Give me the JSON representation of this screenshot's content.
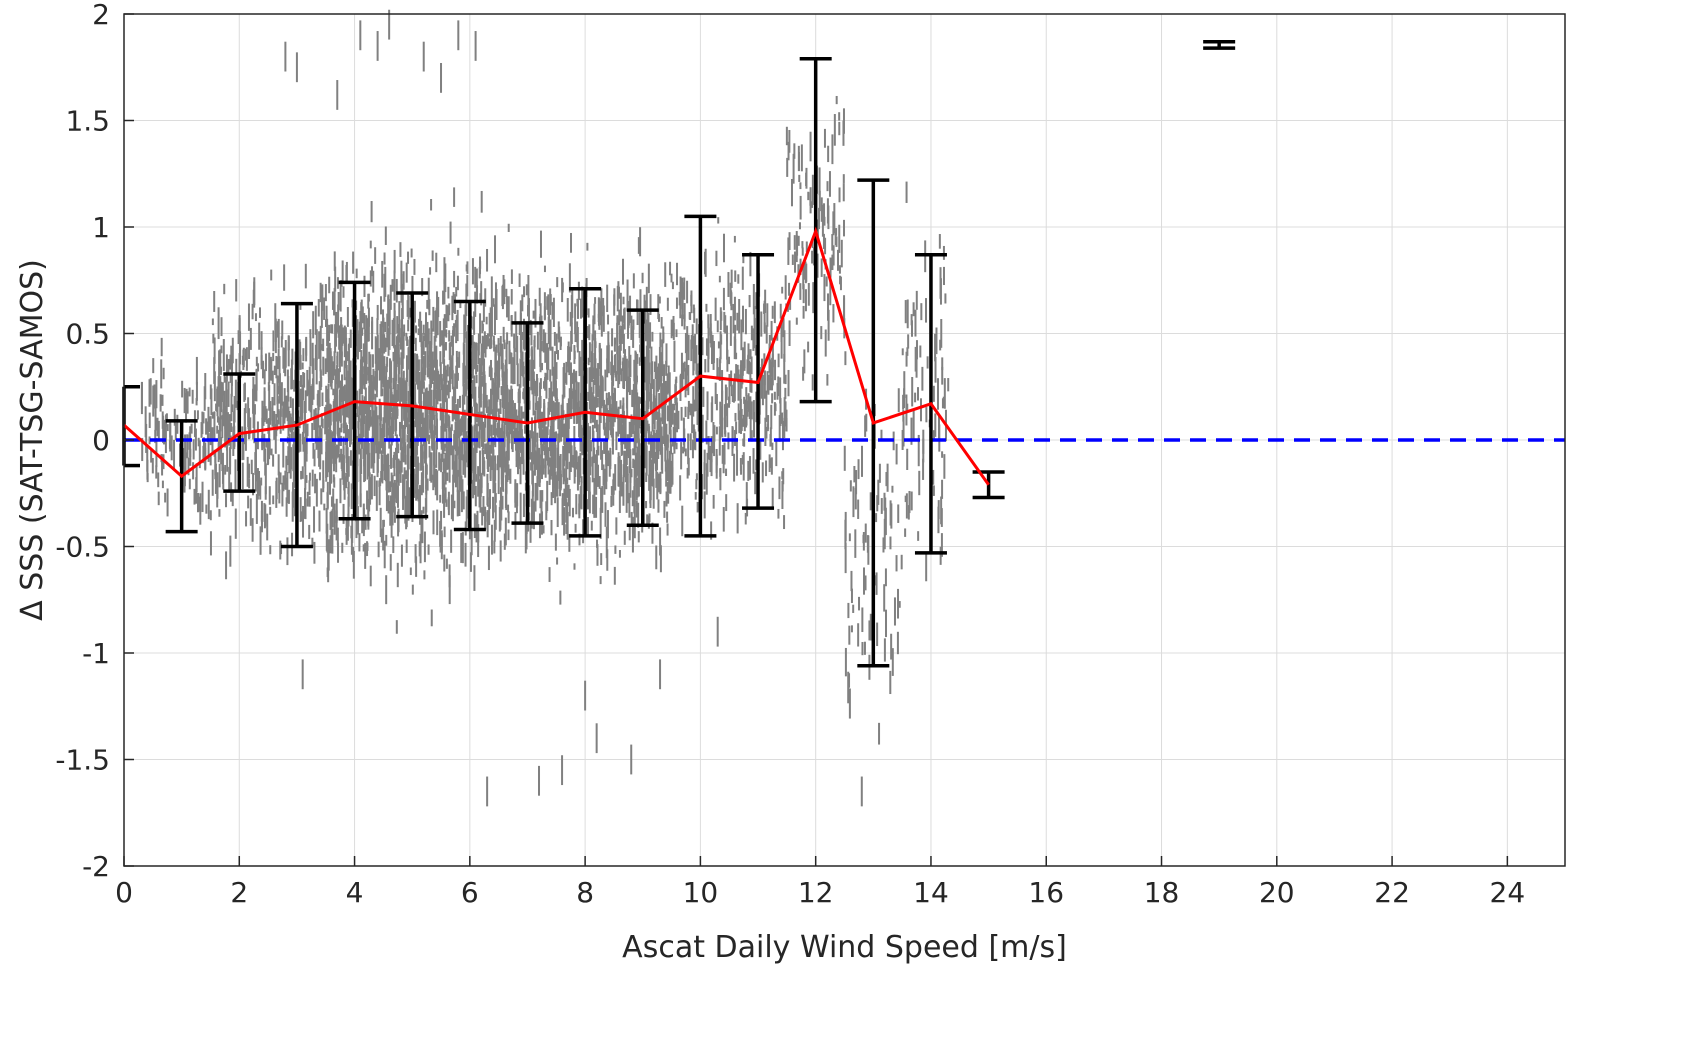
{
  "chart_data": {
    "type": "scatter",
    "title": "",
    "xlabel": "Ascat Daily Wind Speed [m/s]",
    "ylabel": "Δ SSS (SAT-TSG-SAMOS)",
    "xlim": [
      0,
      25
    ],
    "ylim": [
      -2,
      2
    ],
    "x_ticks": [
      0,
      2,
      4,
      6,
      8,
      10,
      12,
      14,
      16,
      18,
      20,
      22,
      24
    ],
    "y_ticks": [
      2,
      1.5,
      1,
      0.5,
      0,
      -0.5,
      -1,
      -1.5,
      -2
    ],
    "x_tick_labels": [
      "0",
      "2",
      "4",
      "6",
      "8",
      "10",
      "12",
      "14",
      "16",
      "18",
      "20",
      "22",
      "24"
    ],
    "y_tick_labels": [
      "2",
      "1.5",
      "1",
      "0.5",
      "0",
      "-0.5",
      "-1",
      "-1.5",
      "-2"
    ],
    "grid": true,
    "legend": "none",
    "colors": {
      "scatter": "#808080",
      "mean_line": "#ff0000",
      "zero_line": "#0000ff",
      "error_bars": "#000000",
      "grid": "#dcdcdc"
    },
    "series": [
      {
        "type": "line",
        "color": "#ff0000",
        "x": [
          0,
          1,
          2,
          3,
          4,
          5,
          6,
          7,
          8,
          9,
          10,
          11,
          12,
          13,
          14,
          15
        ],
        "y": [
          0.07,
          -0.17,
          0.03,
          0.07,
          0.18,
          0.16,
          0.12,
          0.08,
          0.13,
          0.1,
          0.3,
          0.27,
          0.98,
          0.08,
          0.17,
          -0.21
        ]
      },
      {
        "type": "errorbar",
        "color": "#000000",
        "x": [
          0,
          1,
          2,
          3,
          4,
          5,
          6,
          7,
          8,
          9,
          10,
          11,
          12,
          13,
          14,
          15,
          19
        ],
        "lower": [
          -0.12,
          -0.43,
          -0.24,
          -0.5,
          -0.37,
          -0.36,
          -0.42,
          -0.39,
          -0.45,
          -0.4,
          -0.45,
          -0.32,
          0.18,
          -1.06,
          -0.53,
          -0.27,
          1.84
        ],
        "upper": [
          0.25,
          0.09,
          0.31,
          0.64,
          0.74,
          0.69,
          0.65,
          0.55,
          0.71,
          0.61,
          1.05,
          0.87,
          1.79,
          1.22,
          0.87,
          -0.15,
          1.87
        ]
      },
      {
        "type": "hline",
        "color": "#0000ff",
        "dashed": true,
        "y": 0
      }
    ],
    "scatter_clusters": [
      {
        "x": [
          0.3,
          1.5
        ],
        "y_center": 0.0,
        "y_spread": 0.35,
        "n": 110
      },
      {
        "x": [
          1.5,
          3.5
        ],
        "y_center": 0.1,
        "y_spread": 0.55,
        "n": 480
      },
      {
        "x": [
          3.5,
          6.5
        ],
        "y_center": 0.15,
        "y_spread": 0.65,
        "n": 1500
      },
      {
        "x": [
          6.5,
          9.5
        ],
        "y_center": 0.12,
        "y_spread": 0.6,
        "n": 1300
      },
      {
        "x": [
          9.5,
          11.5
        ],
        "y_center": 0.25,
        "y_spread": 0.55,
        "n": 420
      },
      {
        "x": [
          11.5,
          12.5
        ],
        "y_center": 0.9,
        "y_spread": 0.6,
        "n": 120
      },
      {
        "x": [
          12.5,
          13.5
        ],
        "y_center": -0.5,
        "y_spread": 0.7,
        "n": 90
      },
      {
        "x": [
          13.5,
          14.3
        ],
        "y_center": 0.2,
        "y_spread": 0.7,
        "n": 90
      }
    ],
    "scatter_outliers": {
      "x": [
        3.0,
        3.7,
        4.1,
        4.4,
        4.6,
        5.2,
        5.5,
        5.8,
        6.1,
        6.3,
        7.2,
        7.6,
        8.0,
        8.2,
        8.8,
        9.3,
        10.3,
        12.8,
        3.1,
        2.8
      ],
      "y": [
        1.75,
        1.62,
        1.9,
        1.85,
        1.95,
        1.8,
        1.7,
        1.9,
        1.85,
        -1.65,
        -1.6,
        -1.55,
        -1.2,
        -1.4,
        -1.5,
        -1.1,
        -0.9,
        -1.65,
        -1.1,
        1.8
      ]
    }
  }
}
